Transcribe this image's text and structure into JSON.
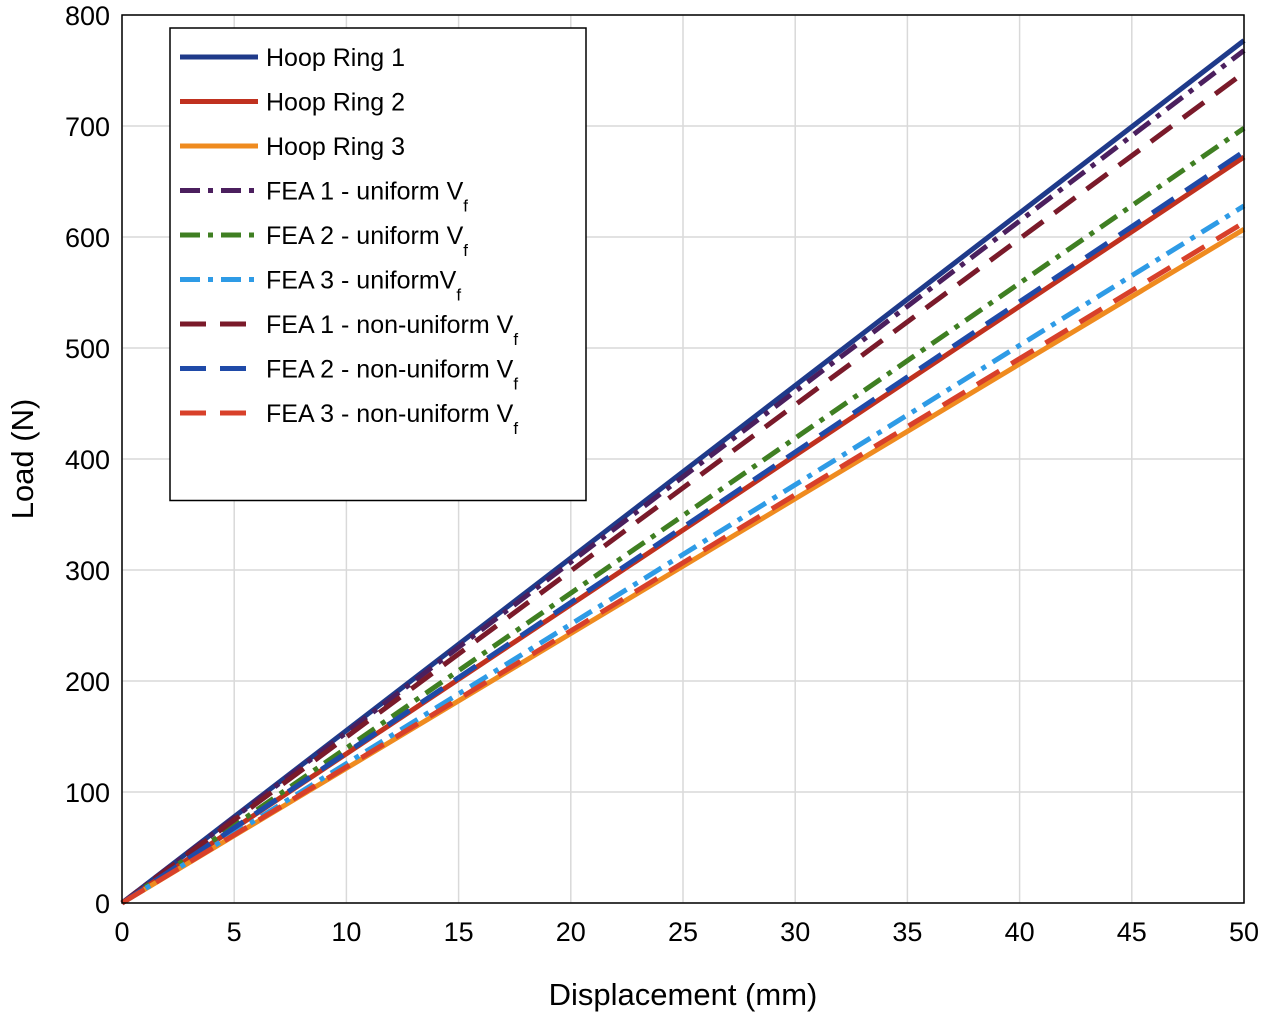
{
  "chart_data": {
    "type": "line",
    "title": "",
    "xlabel": "Displacement (mm)",
    "ylabel": "Load (N)",
    "xlim": [
      0,
      50
    ],
    "ylim": [
      0,
      800
    ],
    "xticks": [
      "0",
      "5",
      "10",
      "15",
      "20",
      "25",
      "30",
      "35",
      "40",
      "45",
      "50"
    ],
    "yticks": [
      "0",
      "100",
      "200",
      "300",
      "400",
      "500",
      "600",
      "700",
      "800"
    ],
    "grid": true,
    "legend_position": "top-left",
    "x": [
      0,
      50
    ],
    "series": [
      {
        "name": "Hoop Ring 1",
        "legend_main": "Hoop Ring 1",
        "legend_sub": "",
        "values": [
          0,
          777
        ],
        "color": "#1f3a8a",
        "style": "solid"
      },
      {
        "name": "Hoop Ring 2",
        "legend_main": "Hoop Ring 2",
        "legend_sub": "",
        "values": [
          0,
          672
        ],
        "color": "#c0311f",
        "style": "solid"
      },
      {
        "name": "Hoop Ring 3",
        "legend_main": "Hoop Ring 3",
        "legend_sub": "",
        "values": [
          0,
          607
        ],
        "color": "#ef8b1f",
        "style": "solid"
      },
      {
        "name": "FEA 1 - uniform Vf",
        "legend_main": "FEA 1 - uniform V",
        "legend_sub": "f",
        "values": [
          0,
          768
        ],
        "color": "#4b1f5e",
        "style": "dashdot"
      },
      {
        "name": "FEA 2 - uniform Vf",
        "legend_main": "FEA 2 - uniform V",
        "legend_sub": "f",
        "values": [
          0,
          698
        ],
        "color": "#3f7f22",
        "style": "dashdot"
      },
      {
        "name": "FEA 3 - uniformVf",
        "legend_main": "FEA 3 - uniformV",
        "legend_sub": "f",
        "values": [
          0,
          628
        ],
        "color": "#2e9be6",
        "style": "dashdot"
      },
      {
        "name": "FEA 1 - non-uniform Vf",
        "legend_main": "FEA 1 - non-uniform V",
        "legend_sub": "f",
        "values": [
          0,
          748
        ],
        "color": "#7a1a2a",
        "style": "dashed"
      },
      {
        "name": "FEA 2 - non-uniform Vf",
        "legend_main": "FEA 2 - non-uniform V",
        "legend_sub": "f",
        "values": [
          0,
          677
        ],
        "color": "#1f4aa8",
        "style": "dashed"
      },
      {
        "name": "FEA 3 - non-uniform Vf",
        "legend_main": "FEA 3 - non-uniform V",
        "legend_sub": "f",
        "values": [
          0,
          613
        ],
        "color": "#d8402a",
        "style": "dashed"
      }
    ]
  }
}
